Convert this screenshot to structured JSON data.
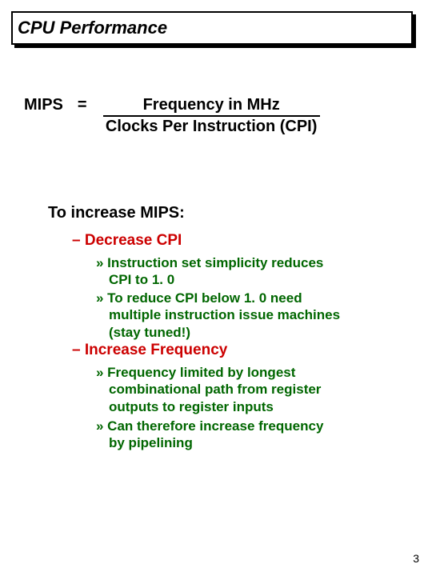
{
  "title": "CPU Performance",
  "equation": {
    "lhs": "MIPS",
    "eq": "=",
    "numerator": "Frequency in MHz",
    "denominator": "Clocks Per Instruction (CPI)"
  },
  "sectionHeader": "To increase MIPS:",
  "bullets": {
    "l1a": "– Decrease CPI",
    "l2a1_line1": "» Instruction set simplicity reduces",
    "l2a1_line2": "CPI to 1. 0",
    "l2a2_line1": "» To reduce CPI below 1. 0 need",
    "l2a2_line2": "multiple instruction issue machines",
    "l2a2_line3": "(stay tuned!)",
    "l1b": "– Increase Frequency",
    "l2b1_line1": "» Frequency limited by longest",
    "l2b1_line2": "combinational path from register",
    "l2b1_line3": "outputs to register inputs",
    "l2b2_line1": "» Can therefore increase frequency",
    "l2b2_line2": "by pipelining"
  },
  "pageNumber": "3",
  "colors": {
    "title": "#000000",
    "level1": "#cc0000",
    "level2": "#006600",
    "border": "#000000",
    "background": "#ffffff"
  }
}
